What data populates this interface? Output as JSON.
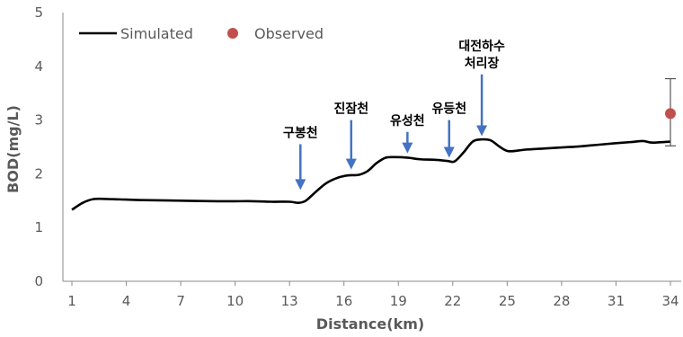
{
  "chart_data": {
    "type": "line",
    "xlabel": "Distance(km)",
    "ylabel": "BOD(mg/L)",
    "xlim": [
      1,
      34
    ],
    "ylim": [
      0,
      5
    ],
    "xticks": [
      1,
      4,
      7,
      10,
      13,
      16,
      19,
      22,
      25,
      28,
      31,
      34
    ],
    "yticks": [
      0,
      1,
      2,
      3,
      4,
      5
    ],
    "grid": false,
    "legend_position": "top-left",
    "series": [
      {
        "name": "Simulated",
        "color": "#000000",
        "x": [
          1,
          1.6,
          2.2,
          3,
          4,
          5,
          7,
          9,
          10,
          11,
          12,
          13,
          13.5,
          13.9,
          14.4,
          15,
          15.6,
          16.2,
          16.8,
          17.3,
          17.8,
          18.3,
          18.8,
          19.5,
          20.2,
          21,
          21.7,
          22.1,
          22.6,
          23.1,
          23.6,
          24.1,
          24.6,
          25.1,
          26,
          27,
          28,
          29,
          30,
          31,
          31.8,
          32.5,
          33,
          34
        ],
        "values": [
          1.33,
          1.46,
          1.53,
          1.53,
          1.52,
          1.51,
          1.5,
          1.49,
          1.49,
          1.49,
          1.48,
          1.48,
          1.46,
          1.5,
          1.65,
          1.82,
          1.92,
          1.97,
          1.98,
          2.05,
          2.2,
          2.3,
          2.31,
          2.3,
          2.27,
          2.26,
          2.24,
          2.23,
          2.4,
          2.6,
          2.64,
          2.62,
          2.5,
          2.42,
          2.45,
          2.47,
          2.49,
          2.51,
          2.54,
          2.57,
          2.59,
          2.61,
          2.58,
          2.6
        ]
      },
      {
        "name": "Observed",
        "type": "scatter",
        "color": "#C0504D",
        "points": [
          {
            "x": 34,
            "y": 3.12,
            "error_low": 2.52,
            "error_high": 3.77
          }
        ]
      }
    ],
    "annotations": [
      {
        "text": [
          "구봉천"
        ],
        "x": 13.6,
        "arrow_from": 2.55,
        "arrow_to": 1.7
      },
      {
        "text": [
          "진잠천"
        ],
        "x": 16.4,
        "arrow_from": 3.0,
        "arrow_to": 2.08
      },
      {
        "text": [
          "유성천"
        ],
        "x": 19.5,
        "arrow_from": 2.78,
        "arrow_to": 2.38
      },
      {
        "text": [
          "유등천"
        ],
        "x": 21.8,
        "arrow_from": 3.0,
        "arrow_to": 2.3
      },
      {
        "text": [
          "대전하수",
          "처리장"
        ],
        "x": 23.6,
        "arrow_from": 3.85,
        "arrow_to": 2.7
      }
    ]
  }
}
